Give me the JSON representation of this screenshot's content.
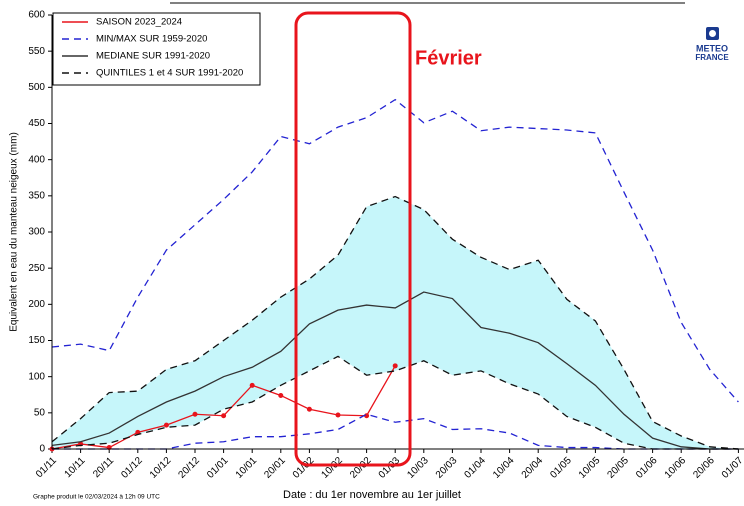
{
  "chart_data": {
    "type": "line",
    "x_label": "Date : du 1er novembre au 1er juillet",
    "y_label": "Equivalent en eau du manteau neigeux (mm)",
    "footnote": "Graphe produit le 02/03/2024 à 12h 09 UTC",
    "annotation": "Février",
    "logo": [
      "METEO",
      "FRANCE"
    ],
    "categories": [
      "01/11",
      "10/11",
      "20/11",
      "01/12",
      "10/12",
      "20/12",
      "01/01",
      "10/01",
      "20/01",
      "01/02",
      "10/02",
      "20/02",
      "01/03",
      "10/03",
      "20/03",
      "01/04",
      "10/04",
      "20/04",
      "01/05",
      "10/05",
      "20/05",
      "01/06",
      "10/06",
      "20/06",
      "01/07"
    ],
    "ylim": [
      0,
      600
    ],
    "yticks": [
      0,
      50,
      100,
      150,
      200,
      250,
      300,
      350,
      400,
      450,
      500,
      550,
      600
    ],
    "series": [
      {
        "name": "SAISON 2023_2024",
        "color": "#e8141c",
        "dash": "none",
        "markers": true,
        "values": [
          0,
          7,
          2,
          23,
          33,
          48,
          46,
          88,
          74,
          55,
          47,
          46,
          115,
          null,
          null,
          null,
          null,
          null,
          null,
          null,
          null,
          null,
          null,
          null,
          null
        ]
      },
      {
        "name": "MIN/MAX SUR 1959-2020",
        "color": "#2323d2",
        "dash": "7 5",
        "high": [
          141,
          145,
          136,
          210,
          275,
          310,
          345,
          383,
          432,
          422,
          445,
          458,
          483,
          451,
          467,
          440,
          445,
          443,
          441,
          437,
          355,
          275,
          175,
          110,
          65
        ],
        "low": [
          0,
          0,
          0,
          0,
          0,
          8,
          10,
          17,
          17,
          21,
          27,
          48,
          37,
          42,
          27,
          28,
          22,
          5,
          2,
          2,
          0,
          0,
          0,
          0,
          0
        ]
      },
      {
        "name": "MEDIANE SUR 1991-2020",
        "color": "#333333",
        "dash": "none",
        "values": [
          5,
          10,
          22,
          45,
          65,
          80,
          100,
          113,
          135,
          173,
          192,
          199,
          195,
          217,
          208,
          168,
          160,
          147,
          118,
          88,
          48,
          15,
          3,
          0,
          0
        ]
      },
      {
        "name": "QUINTILES 1 et 4 SUR 1991-2020",
        "color": "#111111",
        "dash": "7 5",
        "fill": "#c6f6fa",
        "high": [
          10,
          42,
          78,
          80,
          110,
          122,
          150,
          178,
          210,
          235,
          268,
          335,
          349,
          331,
          290,
          265,
          248,
          261,
          207,
          177,
          110,
          38,
          18,
          3,
          0
        ],
        "low": [
          0,
          5,
          8,
          20,
          30,
          33,
          55,
          65,
          88,
          108,
          128,
          102,
          108,
          122,
          102,
          108,
          90,
          76,
          45,
          30,
          8,
          0,
          0,
          0,
          0
        ]
      }
    ]
  }
}
